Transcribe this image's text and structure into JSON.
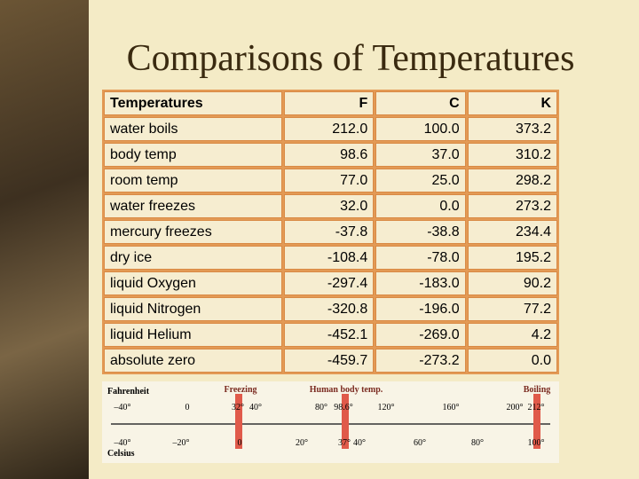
{
  "header": {
    "title": "Comparisons of Temperatures"
  },
  "table": {
    "header": [
      "Temperatures",
      "F",
      "C",
      "K"
    ],
    "rows": [
      [
        "water boils",
        "212.0",
        "100.0",
        "373.2"
      ],
      [
        "body temp",
        "98.6",
        "37.0",
        "310.2"
      ],
      [
        "room temp",
        "77.0",
        "25.0",
        "298.2"
      ],
      [
        "water freezes",
        "32.0",
        "0.0",
        "273.2"
      ],
      [
        "mercury freezes",
        "-37.8",
        "-38.8",
        "234.4"
      ],
      [
        "dry ice",
        "-108.4",
        "-78.0",
        "195.2"
      ],
      [
        "liquid Oxygen",
        "-297.4",
        "-183.0",
        "90.2"
      ],
      [
        "liquid Nitrogen",
        "-320.8",
        "-196.0",
        "77.2"
      ],
      [
        "liquid Helium",
        "-452.1",
        "-269.0",
        "4.2"
      ],
      [
        "absolute zero",
        "-459.7",
        "-273.2",
        "0.0"
      ]
    ]
  },
  "scale": {
    "fahrenheit_label": "Fahrenheit",
    "celsius_label": "Celsius",
    "markers": [
      "Freezing",
      "Human body temp.",
      "Boiling"
    ],
    "fahrenheit_ticks": [
      "–40°",
      "0",
      "32°",
      "40°",
      "80°",
      "98.6°",
      "120°",
      "160°",
      "200°",
      "212°"
    ],
    "celsius_ticks": [
      "–40°",
      "–20°",
      "0",
      "20°",
      "37°",
      "40°",
      "60°",
      "80°",
      "100°"
    ]
  }
}
